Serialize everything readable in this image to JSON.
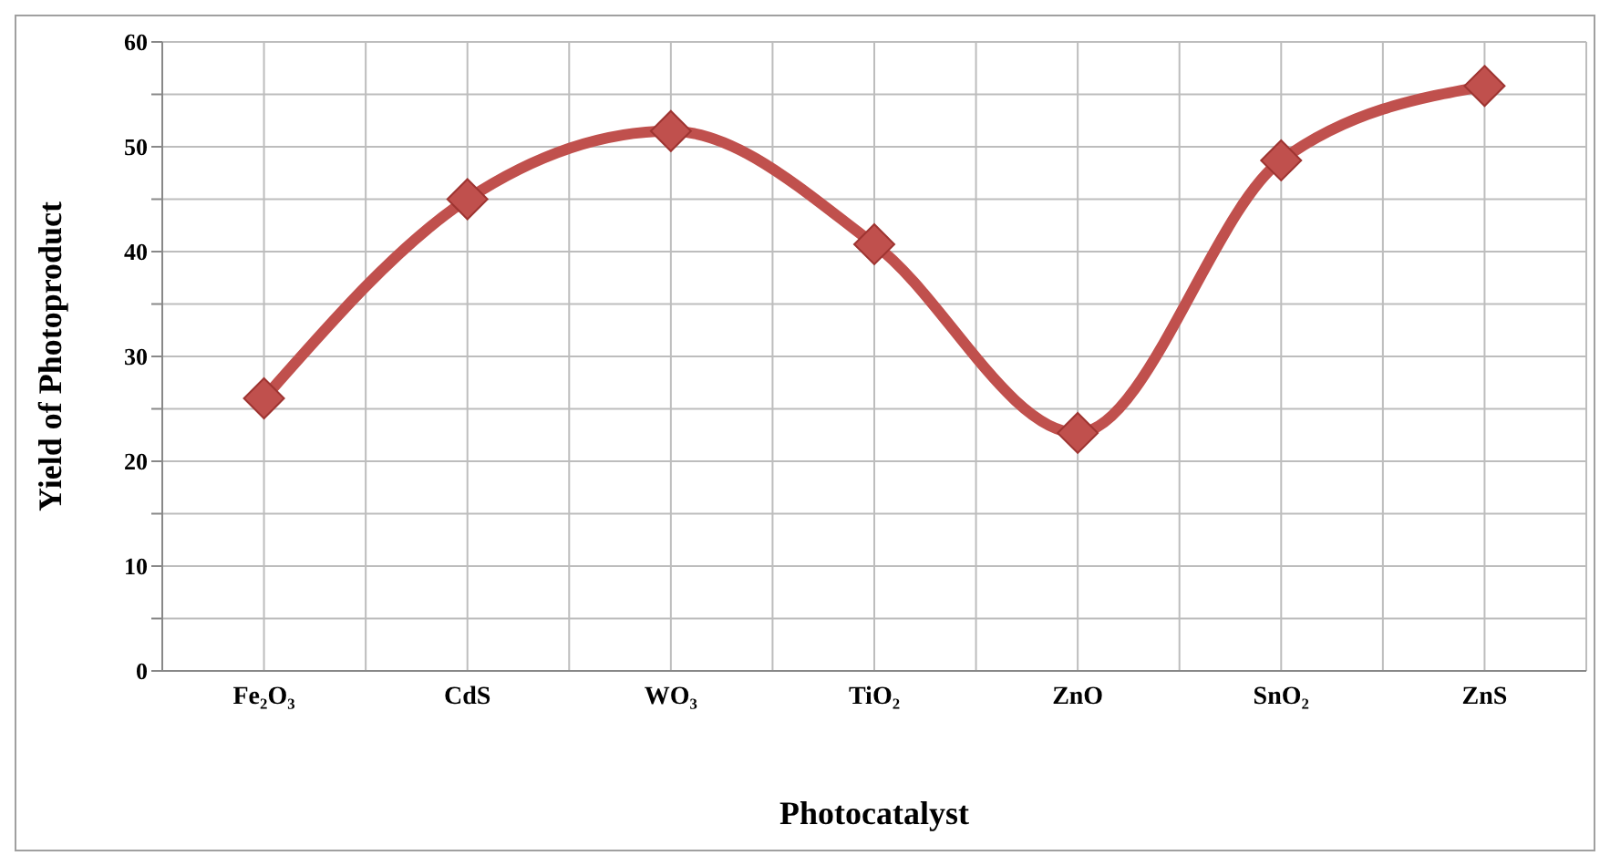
{
  "chart_data": {
    "type": "line",
    "xlabel": "Photocatalyst",
    "ylabel": "Yield of Photoproduct",
    "categories": [
      "Fe₂O₃",
      "CdS",
      "WO₃",
      "TiO₂",
      "ZnO",
      "SnO₂",
      "ZnS"
    ],
    "series": [
      {
        "color": "#c0504d",
        "values": [
          26,
          45,
          51.5,
          40.7,
          22.7,
          48.7,
          55.8
        ]
      }
    ],
    "ylim": [
      0,
      60
    ],
    "yticks": [
      0,
      {
        "value": 5,
        "label": null
      },
      10,
      {
        "value": 15,
        "label": null
      },
      20,
      {
        "value": 25,
        "label": null
      },
      30,
      {
        "value": 35,
        "label": null
      },
      40,
      {
        "value": 45,
        "label": null
      },
      50,
      {
        "value": 55,
        "label": null
      },
      60
    ],
    "grid": true,
    "marker": "diamond",
    "line_style": "solid"
  }
}
